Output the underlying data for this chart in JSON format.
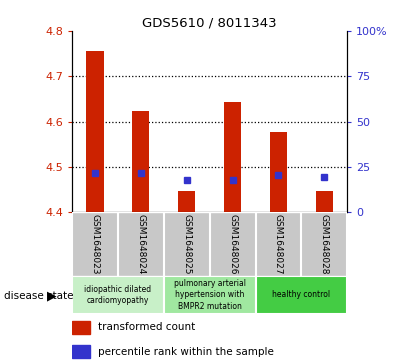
{
  "title": "GDS5610 / 8011343",
  "samples": [
    "GSM1648023",
    "GSM1648024",
    "GSM1648025",
    "GSM1648026",
    "GSM1648027",
    "GSM1648028"
  ],
  "bar_tops": [
    4.755,
    4.623,
    4.447,
    4.643,
    4.576,
    4.447
  ],
  "bar_bottom": 4.4,
  "percentile_values": [
    4.487,
    4.487,
    4.472,
    4.472,
    4.482,
    4.477
  ],
  "ylim_left": [
    4.4,
    4.8
  ],
  "ylim_right": [
    0,
    100
  ],
  "yticks_left": [
    4.4,
    4.5,
    4.6,
    4.7,
    4.8
  ],
  "yticks_right": [
    0,
    25,
    50,
    75,
    100
  ],
  "ytick_labels_right": [
    "0",
    "25",
    "50",
    "75",
    "100%"
  ],
  "dotted_lines": [
    4.5,
    4.6,
    4.7
  ],
  "bar_color": "#cc2200",
  "blue_color": "#3333cc",
  "group_colors": [
    "#c8f0c8",
    "#a0e8a0",
    "#44cc44"
  ],
  "group_labels": [
    "idiopathic dilated\ncardiomyopathy",
    "pulmonary arterial\nhypertension with\nBMPR2 mutation",
    "healthy control"
  ],
  "group_ranges": [
    [
      0,
      1
    ],
    [
      2,
      3
    ],
    [
      4,
      5
    ]
  ],
  "legend_labels": [
    "transformed count",
    "percentile rank within the sample"
  ],
  "legend_colors": [
    "#cc2200",
    "#3333cc"
  ],
  "disease_state_label": "disease state",
  "xlabel_bg": "#c8c8c8",
  "plot_bg": "#ffffff"
}
